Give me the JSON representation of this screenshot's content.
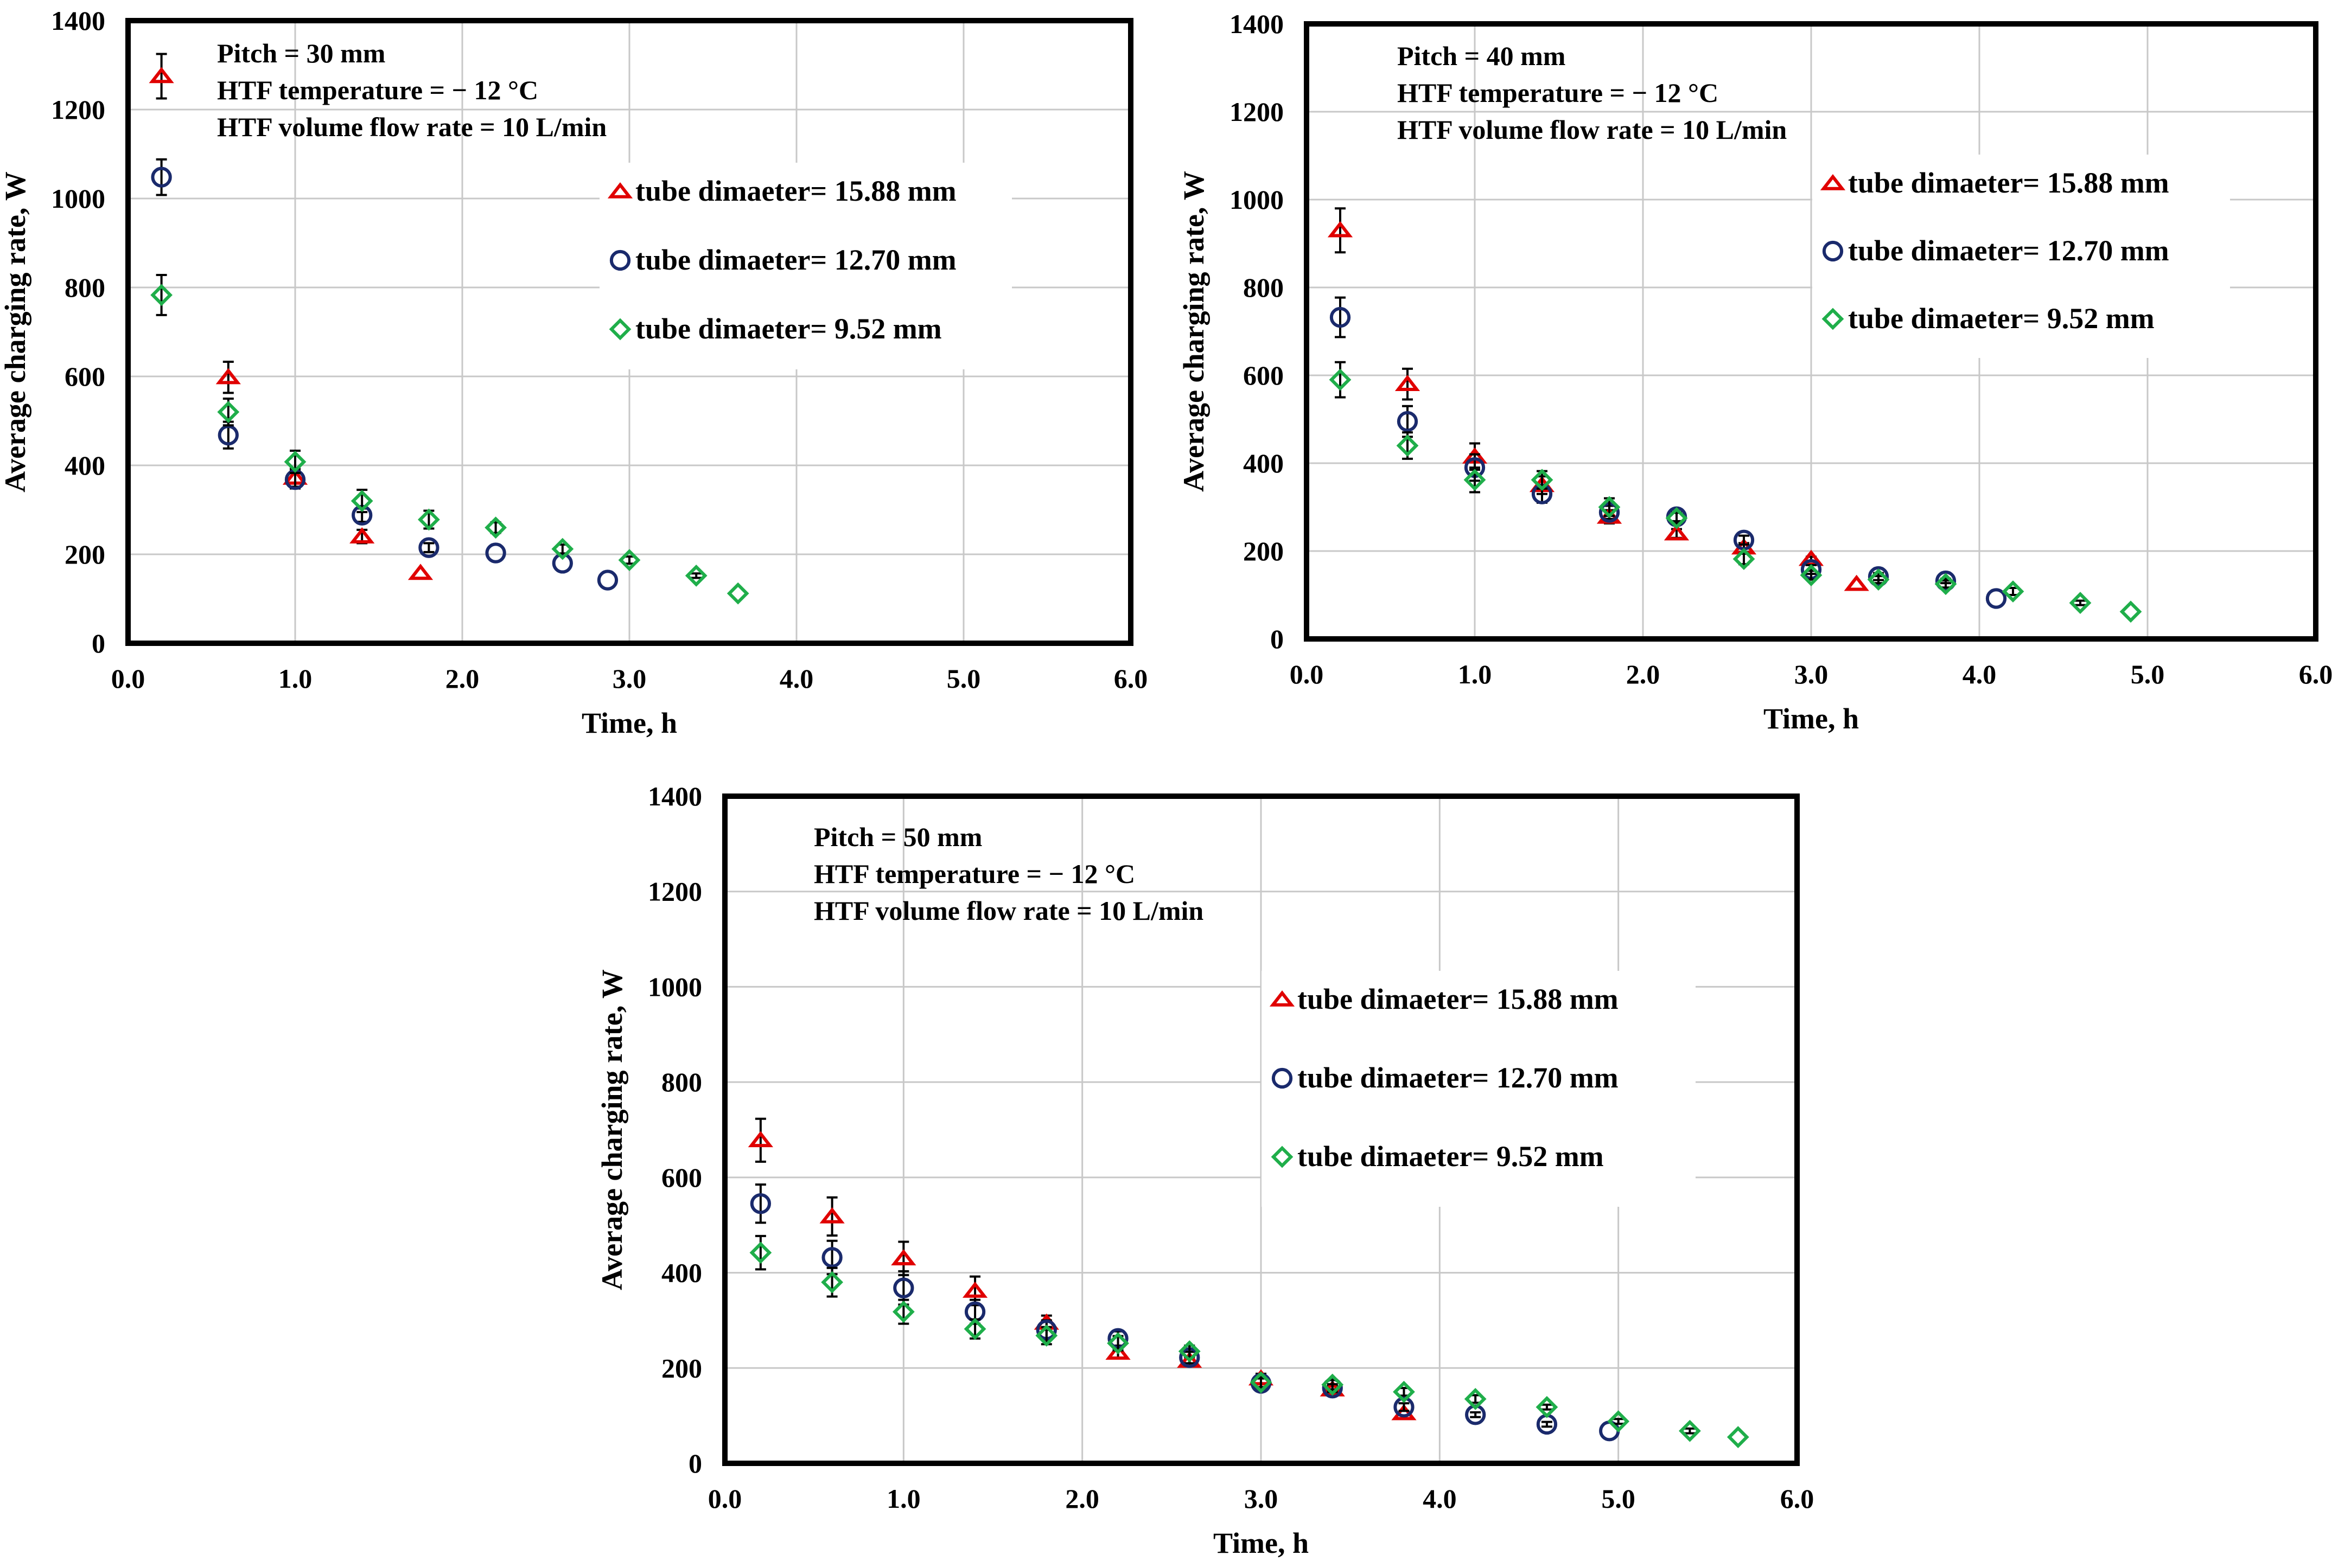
{
  "colors": {
    "tri": "#e00000",
    "circ": "#1a2a6c",
    "diam": "#1fae4a",
    "grid": "#c8c8c8",
    "frame": "#000000"
  },
  "chart_data": [
    {
      "type": "scatter",
      "panel": "top-left",
      "xlabel": "Time, h",
      "ylabel": "Average charging rate, W",
      "xlim": [
        0,
        6
      ],
      "ylim": [
        0,
        1400
      ],
      "xticks": [
        "0.0",
        "1.0",
        "2.0",
        "3.0",
        "4.0",
        "5.0",
        "6.0"
      ],
      "yticks": [
        "0",
        "200",
        "400",
        "600",
        "800",
        "1000",
        "1200",
        "1400"
      ],
      "grid": true,
      "annotations": [
        "Pitch  = 30 mm",
        "HTF temperature = − 12 °C",
        "HTF volume flow rate = 10 L/min"
      ],
      "legend_position": "upper-right",
      "series": [
        {
          "name": "tube dimaeter= 15.88 mm",
          "marker": "triangle",
          "x": [
            0.2,
            0.6,
            1.0,
            1.4,
            1.75
          ],
          "y": [
            1275,
            598,
            372,
            240,
            158
          ],
          "err": [
            50,
            35,
            20,
            15,
            0
          ]
        },
        {
          "name": "tube dimaeter= 12.70 mm",
          "marker": "circle",
          "x": [
            0.2,
            0.6,
            1.0,
            1.4,
            1.8,
            2.2,
            2.6,
            2.87
          ],
          "y": [
            1048,
            468,
            368,
            288,
            215,
            203,
            180,
            142
          ],
          "err": [
            40,
            30,
            20,
            15,
            10,
            0,
            0,
            0
          ]
        },
        {
          "name": "tube dimaeter= 9.52 mm",
          "marker": "diamond",
          "x": [
            0.2,
            0.6,
            1.0,
            1.4,
            1.8,
            2.2,
            2.6,
            3.0,
            3.4,
            3.65
          ],
          "y": [
            783,
            520,
            408,
            320,
            278,
            260,
            212,
            187,
            152,
            112
          ],
          "err": [
            45,
            30,
            25,
            25,
            20,
            12,
            10,
            8,
            5,
            0
          ]
        }
      ]
    },
    {
      "type": "scatter",
      "panel": "top-right",
      "xlabel": "Time, h",
      "ylabel": "Average charging rate, W",
      "xlim": [
        0,
        6
      ],
      "ylim": [
        0,
        1400
      ],
      "xticks": [
        "0.0",
        "1.0",
        "2.0",
        "3.0",
        "4.0",
        "5.0",
        "6.0"
      ],
      "yticks": [
        "0",
        "200",
        "400",
        "600",
        "800",
        "1000",
        "1200",
        "1400"
      ],
      "grid": true,
      "annotations": [
        "Pitch  = 40 mm",
        "HTF temperature = − 12 °C",
        "HTF volume flow rate = 10 L/min"
      ],
      "legend_position": "upper-right",
      "series": [
        {
          "name": "tube dimaeter= 15.88 mm",
          "marker": "triangle",
          "x": [
            0.2,
            0.6,
            1.0,
            1.4,
            1.8,
            2.2,
            2.6,
            3.0,
            3.27
          ],
          "y": [
            930,
            580,
            415,
            350,
            278,
            240,
            208,
            182,
            125
          ],
          "err": [
            50,
            35,
            30,
            20,
            15,
            10,
            10,
            5,
            0
          ]
        },
        {
          "name": "tube dimaeter= 12.70 mm",
          "marker": "circle",
          "x": [
            0.2,
            0.6,
            1.0,
            1.4,
            1.8,
            2.2,
            2.6,
            3.0,
            3.4,
            3.8,
            4.1
          ],
          "y": [
            732,
            495,
            390,
            330,
            288,
            278,
            225,
            158,
            142,
            132,
            92
          ],
          "err": [
            45,
            35,
            30,
            20,
            15,
            10,
            10,
            10,
            8,
            5,
            0
          ]
        },
        {
          "name": "tube dimaeter= 9.52 mm",
          "marker": "diamond",
          "x": [
            0.2,
            0.6,
            1.0,
            1.4,
            1.8,
            2.2,
            2.6,
            3.0,
            3.4,
            3.8,
            4.2,
            4.6,
            4.9
          ],
          "y": [
            590,
            440,
            362,
            362,
            300,
            275,
            182,
            145,
            135,
            125,
            108,
            82,
            62
          ],
          "err": [
            40,
            30,
            28,
            20,
            20,
            12,
            12,
            10,
            8,
            8,
            8,
            5,
            0
          ]
        }
      ]
    },
    {
      "type": "scatter",
      "panel": "bottom-center",
      "xlabel": "Time, h",
      "ylabel": "Average charging rate, W",
      "xlim": [
        0,
        6
      ],
      "ylim": [
        0,
        1400
      ],
      "xticks": [
        "0.0",
        "1.0",
        "2.0",
        "3.0",
        "4.0",
        "5.0",
        "6.0"
      ],
      "yticks": [
        "0",
        "200",
        "400",
        "600",
        "800",
        "1000",
        "1200",
        "1400"
      ],
      "grid": true,
      "annotations": [
        "Pitch  = 50 mm",
        "HTF temperature = − 12 °C",
        "HTF volume flow rate = 10 L/min"
      ],
      "legend_position": "upper-right",
      "series": [
        {
          "name": "tube dimaeter= 15.88 mm",
          "marker": "triangle",
          "x": [
            0.2,
            0.6,
            1.0,
            1.4,
            1.8,
            2.2,
            2.6,
            3.0,
            3.4,
            3.8
          ],
          "y": [
            678,
            518,
            430,
            362,
            295,
            232,
            215,
            178,
            155,
            105
          ],
          "err": [
            45,
            40,
            35,
            30,
            15,
            10,
            10,
            10,
            8,
            0
          ]
        },
        {
          "name": "tube dimaeter= 12.70 mm",
          "marker": "circle",
          "x": [
            0.2,
            0.6,
            1.0,
            1.4,
            1.8,
            2.2,
            2.6,
            3.0,
            3.4,
            3.8,
            4.2,
            4.6,
            4.95
          ],
          "y": [
            545,
            432,
            368,
            318,
            280,
            262,
            222,
            168,
            158,
            118,
            102,
            82,
            68
          ],
          "err": [
            40,
            35,
            35,
            25,
            20,
            15,
            12,
            10,
            8,
            8,
            5,
            5,
            0
          ]
        },
        {
          "name": "tube dimaeter= 9.52 mm",
          "marker": "diamond",
          "x": [
            0.2,
            0.6,
            1.0,
            1.4,
            1.8,
            2.2,
            2.6,
            3.0,
            3.4,
            3.8,
            4.2,
            4.6,
            5.0,
            5.4,
            5.67
          ],
          "y": [
            442,
            380,
            318,
            282,
            268,
            252,
            235,
            170,
            165,
            150,
            135,
            118,
            88,
            68,
            55
          ],
          "err": [
            35,
            30,
            25,
            20,
            18,
            15,
            12,
            10,
            10,
            8,
            8,
            5,
            5,
            5,
            0
          ]
        }
      ]
    }
  ]
}
